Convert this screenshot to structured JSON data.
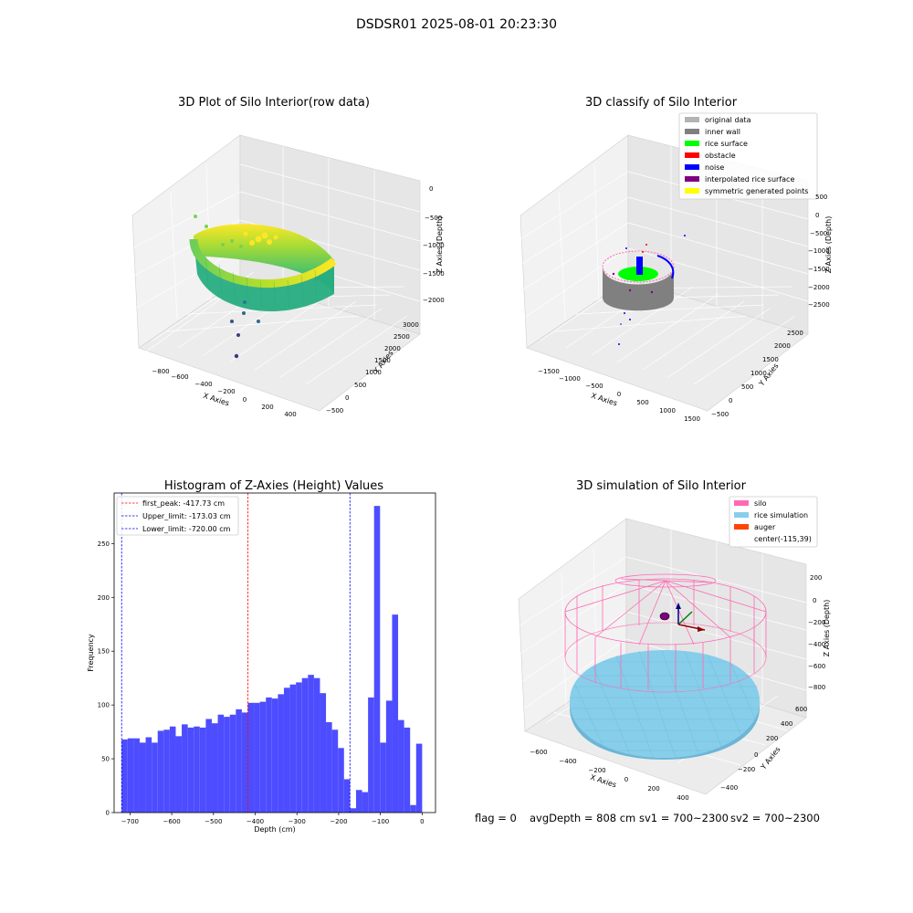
{
  "figure": {
    "suptitle": "DSDSR01 2025-08-01 20:23:30",
    "status": {
      "flag": "flag = 0",
      "avg_depth": "avgDepth = 808 cm",
      "sv1": "sv1 = 700~2300",
      "sv2": "sv2 = 700~2300"
    }
  },
  "colors": {
    "original_data": "#b3b3b3",
    "inner_wall": "#808080",
    "rice_surface": "#00ff00",
    "obstacle": "#ff0000",
    "noise": "#0000ff",
    "interpolated_rice_surface": "#800080",
    "symmetric_generated_points": "#ffff00",
    "silo": "#ff69b4",
    "rice_simulation": "#87ceeb",
    "auger": "#ff4500",
    "histogram_bar": "#4d4dff",
    "first_peak_line": "#ff0000",
    "limit_line": "#0000ff"
  },
  "chart_data": [
    {
      "type": "scatter3d",
      "title": "3D Plot of Silo Interior(row data)",
      "xlabel": "X Axies",
      "ylabel": "Y Axies",
      "zlabel": "Z Axies (Depth)",
      "x_ticks": [
        "−800",
        "−600",
        "−400",
        "−200",
        "0",
        "200",
        "400"
      ],
      "y_ticks": [
        "−500",
        "0",
        "500",
        "1000",
        "1500",
        "2000",
        "2500",
        "3000"
      ],
      "z_ticks": [
        "0",
        "−500",
        "−1000",
        "−1500",
        "−2000"
      ],
      "colormap": "viridis"
    },
    {
      "type": "scatter3d",
      "title": "3D classify of Silo Interior",
      "xlabel": "X Axies",
      "ylabel": "Y Axies",
      "zlabel": "Z Axies (Depth)",
      "x_ticks": [
        "−1500",
        "−1000",
        "−500",
        "0",
        "500",
        "1000",
        "1500"
      ],
      "y_ticks": [
        "−500",
        "0",
        "500",
        "1000",
        "1500",
        "2000",
        "2500"
      ],
      "z_ticks": [
        "500",
        "0",
        "−500",
        "−1000",
        "−1500",
        "−2000",
        "−2500"
      ],
      "legend_position": "top-right",
      "legend": [
        {
          "label": "original data",
          "color": "#b3b3b3"
        },
        {
          "label": "inner wall",
          "color": "#808080"
        },
        {
          "label": "rice surface",
          "color": "#00ff00"
        },
        {
          "label": "obstacle",
          "color": "#ff0000"
        },
        {
          "label": "noise",
          "color": "#0000ff"
        },
        {
          "label": "interpolated rice surface",
          "color": "#800080"
        },
        {
          "label": "symmetric generated points",
          "color": "#ffff00"
        }
      ]
    },
    {
      "type": "bar",
      "title": "Histogram of Z-Axies (Height) Values",
      "xlabel": "Depth (cm)",
      "ylabel": "Frequency",
      "xlim": [
        -738,
        32
      ],
      "ylim": [
        0,
        297
      ],
      "x_ticks": [
        -700,
        -600,
        -500,
        -400,
        -300,
        -200,
        -100,
        0
      ],
      "x_tick_labels": [
        "−700",
        "−600",
        "−500",
        "−400",
        "−300",
        "−200",
        "−100",
        "0"
      ],
      "y_ticks": [
        0,
        50,
        100,
        150,
        200,
        250
      ],
      "y_tick_labels": [
        "0",
        "50",
        "100",
        "150",
        "200",
        "250"
      ],
      "bin_start": -720,
      "bin_width": 14.4,
      "values": [
        68,
        69,
        69,
        65,
        70,
        65,
        76,
        77,
        80,
        71,
        82,
        79,
        80,
        79,
        87,
        83,
        91,
        89,
        91,
        96,
        93,
        102,
        102,
        103,
        107,
        106,
        110,
        116,
        119,
        121,
        125,
        128,
        125,
        111,
        84,
        77,
        60,
        31,
        4,
        21,
        19,
        107,
        285,
        65,
        104,
        184,
        86,
        79,
        7,
        64
      ],
      "vlines": [
        {
          "x": -417.73,
          "label": "first_peak: -417.73 cm",
          "color": "#ff0000"
        },
        {
          "x": -173.03,
          "label": "Upper_limit: -173.03 cm",
          "color": "#0000ff"
        },
        {
          "x": -720.0,
          "label": "Lower_limit: -720.00 cm",
          "color": "#0000ff"
        }
      ],
      "legend_position": "top-left"
    },
    {
      "type": "surface3d",
      "title": "3D simulation of Silo Interior",
      "xlabel": "X Axies",
      "ylabel": "Y Axies",
      "zlabel": "Z Axies (Depth)",
      "x_ticks": [
        "−600",
        "−400",
        "−200",
        "0",
        "200",
        "400"
      ],
      "y_ticks": [
        "−400",
        "−200",
        "0",
        "200",
        "400",
        "600"
      ],
      "z_ticks": [
        "200",
        "0",
        "−200",
        "−400",
        "−600",
        "−800"
      ],
      "legend_position": "top-right",
      "legend": [
        {
          "label": "silo",
          "color": "#ff69b4"
        },
        {
          "label": "rice simulation",
          "color": "#87ceeb"
        },
        {
          "label": "auger",
          "color": "#ff4500"
        },
        {
          "label": "center(-115,39)",
          "color": ""
        }
      ]
    }
  ]
}
